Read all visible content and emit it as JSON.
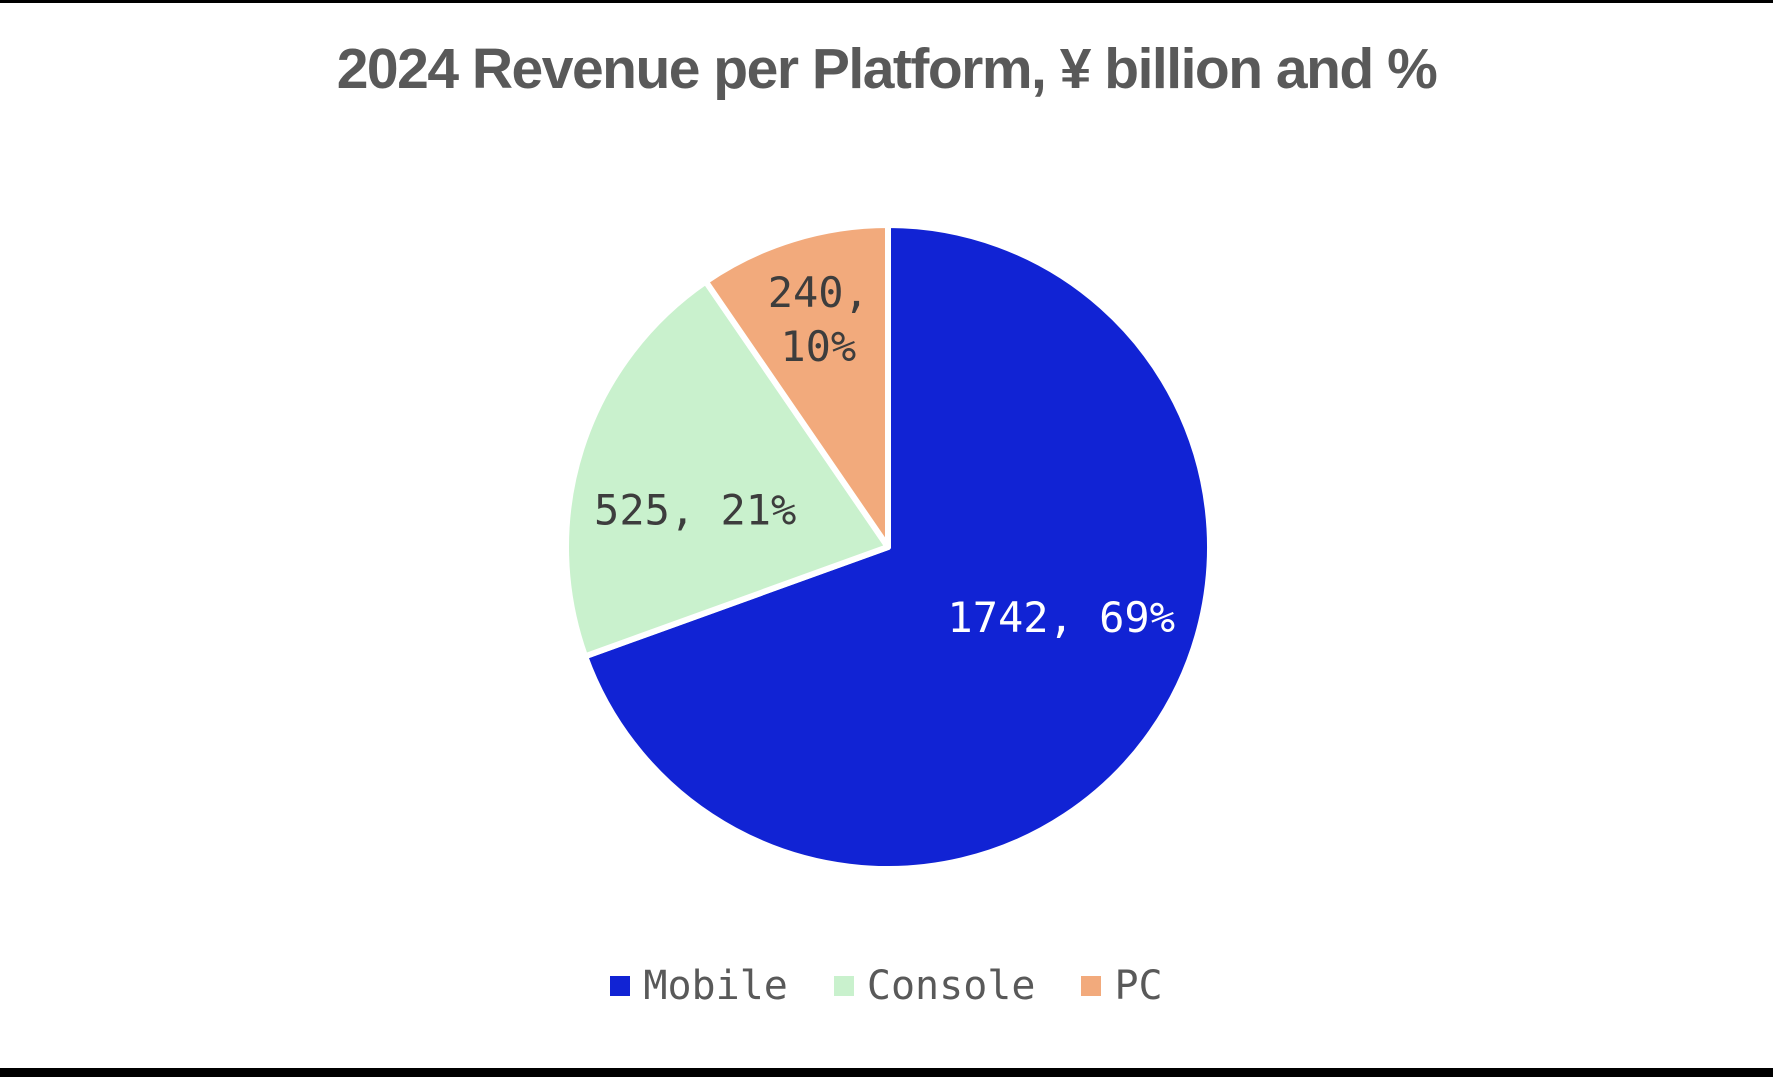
{
  "page": {
    "background": "#ffffff",
    "letterbox_color": "#000000"
  },
  "chart_data": {
    "type": "pie",
    "title": "2024 Revenue per Platform, ¥ billion and %",
    "title_color": "#595959",
    "unit": "¥ billion",
    "start_angle_deg": 0,
    "direction": "clockwise",
    "legend_position": "bottom",
    "slice_gap_stroke": "#ffffff",
    "slices": [
      {
        "label": "Mobile",
        "value": 1742,
        "pct": 69,
        "color": "#1123d4",
        "data_label_lines": [
          "1742, 69%"
        ],
        "data_label_color": "#ffffff",
        "label_angle_deg": 112,
        "label_radius": 0.58
      },
      {
        "label": "Console",
        "value": 525,
        "pct": 21,
        "color": "#c9f1cd",
        "data_label_lines": [
          "525, 21%"
        ],
        "data_label_color": "#3d3d3d",
        "label_angle_deg": 281,
        "label_radius": 0.61
      },
      {
        "label": "PC",
        "value": 240,
        "pct": 10,
        "color": "#f2aa7c",
        "data_label_lines": [
          "240,",
          "10%"
        ],
        "data_label_color": "#3d3d3d",
        "label_angle_deg": 343,
        "label_radius": 0.74
      }
    ]
  }
}
